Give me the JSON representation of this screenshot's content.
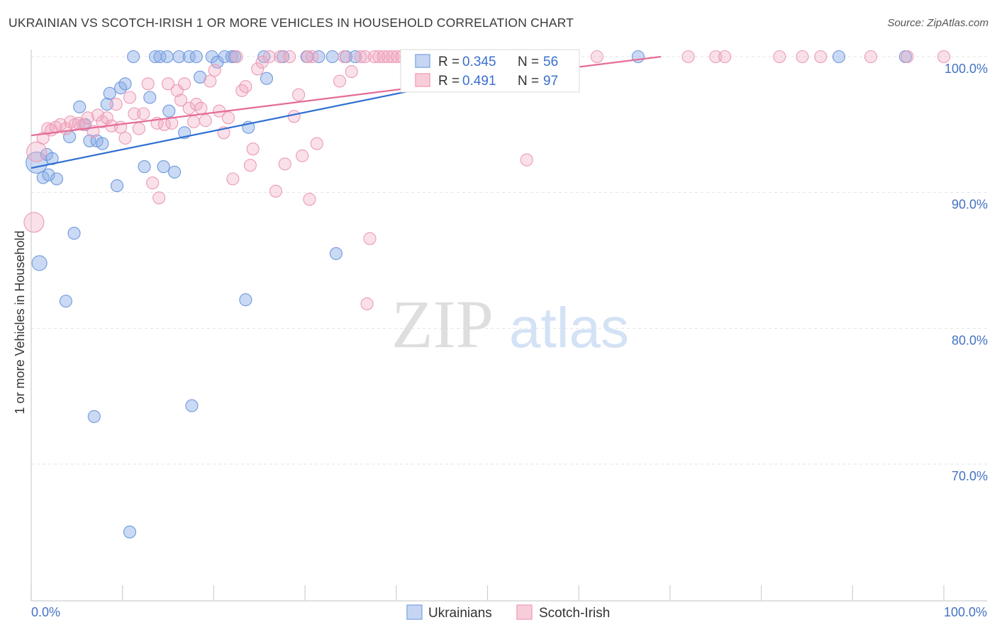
{
  "header": {
    "title": "UKRAINIAN VS SCOTCH-IRISH 1 OR MORE VEHICLES IN HOUSEHOLD CORRELATION CHART",
    "source": "Source: ZipAtlas.com"
  },
  "watermark": {
    "zip": "ZIP",
    "atlas": "atlas"
  },
  "legend": {
    "r_label": "R =",
    "n_label": "N =",
    "series": [
      {
        "name": "Ukrainians",
        "r": "0.345",
        "n": "56"
      },
      {
        "name": "Scotch-Irish",
        "r": "0.491",
        "n": "97"
      }
    ]
  },
  "chart_data": {
    "type": "scatter",
    "title": "UKRAINIAN VS SCOTCH-IRISH 1 OR MORE VEHICLES IN HOUSEHOLD CORRELATION CHART",
    "xlabel": "",
    "ylabel": "1 or more Vehicles in Household",
    "xlim": [
      0,
      100
    ],
    "ylim": [
      60.5,
      101.5
    ],
    "x_tick_labels": [
      "0.0%",
      "100.0%"
    ],
    "y_ticks": [
      {
        "value": 100,
        "label": "100.0%"
      },
      {
        "value": 90,
        "label": "90.0%"
      },
      {
        "value": 80,
        "label": "80.0%"
      },
      {
        "value": 70,
        "label": "70.0%"
      }
    ],
    "colors": {
      "Ukrainians": "#8aaee6",
      "Scotch-Irish": "#f2a7bf",
      "Ukrainians_line": "#2f6fd1",
      "Scotch-Irish_line": "#e56b96"
    },
    "series": [
      {
        "name": "Ukrainians",
        "trend": [
          [
            0,
            91.8
          ],
          [
            60,
            100.0
          ]
        ],
        "points": [
          [
            0.6,
            92.2
          ],
          [
            0.9,
            84.8
          ],
          [
            1.3,
            91.1
          ],
          [
            1.7,
            92.8
          ],
          [
            1.9,
            91.3
          ],
          [
            2.3,
            92.5
          ],
          [
            2.8,
            91.0
          ],
          [
            3.8,
            82.0
          ],
          [
            4.2,
            94.1
          ],
          [
            4.7,
            87.0
          ],
          [
            5.3,
            96.3
          ],
          [
            5.9,
            95.0
          ],
          [
            6.4,
            93.8
          ],
          [
            6.9,
            73.5
          ],
          [
            7.2,
            93.8
          ],
          [
            7.8,
            93.6
          ],
          [
            8.3,
            96.5
          ],
          [
            8.6,
            97.3
          ],
          [
            9.4,
            90.5
          ],
          [
            9.8,
            97.7
          ],
          [
            10.3,
            98.0
          ],
          [
            10.8,
            65.0
          ],
          [
            11.2,
            100.0
          ],
          [
            12.4,
            91.9
          ],
          [
            13.0,
            97.0
          ],
          [
            13.6,
            100.0
          ],
          [
            14.1,
            100.0
          ],
          [
            14.5,
            91.9
          ],
          [
            14.9,
            100.0
          ],
          [
            15.1,
            96.0
          ],
          [
            15.7,
            91.5
          ],
          [
            16.2,
            100.0
          ],
          [
            16.8,
            94.4
          ],
          [
            17.3,
            100.0
          ],
          [
            17.6,
            74.3
          ],
          [
            18.1,
            100.0
          ],
          [
            18.5,
            98.5
          ],
          [
            19.8,
            100.0
          ],
          [
            20.4,
            99.6
          ],
          [
            21.2,
            100.0
          ],
          [
            22.0,
            100.0
          ],
          [
            22.3,
            100.0
          ],
          [
            23.5,
            82.1
          ],
          [
            23.8,
            94.8
          ],
          [
            25.5,
            100.0
          ],
          [
            25.8,
            98.4
          ],
          [
            27.6,
            100.0
          ],
          [
            30.2,
            100.0
          ],
          [
            31.5,
            100.0
          ],
          [
            33.0,
            100.0
          ],
          [
            33.4,
            85.5
          ],
          [
            34.5,
            100.0
          ],
          [
            35.5,
            100.0
          ],
          [
            66.5,
            100.0
          ],
          [
            88.5,
            100.0
          ],
          [
            95.8,
            100.0
          ]
        ]
      },
      {
        "name": "Scotch-Irish",
        "trend": [
          [
            0,
            94.2
          ],
          [
            69,
            100.0
          ]
        ],
        "points": [
          [
            0.3,
            87.8
          ],
          [
            0.6,
            93.0
          ],
          [
            1.3,
            94.0
          ],
          [
            1.8,
            94.7
          ],
          [
            2.2,
            94.6
          ],
          [
            2.7,
            94.8
          ],
          [
            3.2,
            95.0
          ],
          [
            3.8,
            94.7
          ],
          [
            4.3,
            95.2
          ],
          [
            4.8,
            95.0
          ],
          [
            5.2,
            95.1
          ],
          [
            5.7,
            95.0
          ],
          [
            6.2,
            95.5
          ],
          [
            6.8,
            94.5
          ],
          [
            7.3,
            95.7
          ],
          [
            7.8,
            95.2
          ],
          [
            8.3,
            95.5
          ],
          [
            8.8,
            94.9
          ],
          [
            9.3,
            96.5
          ],
          [
            9.8,
            94.8
          ],
          [
            10.3,
            94.0
          ],
          [
            10.8,
            97.0
          ],
          [
            11.3,
            95.8
          ],
          [
            11.8,
            94.7
          ],
          [
            12.3,
            95.8
          ],
          [
            12.8,
            98.0
          ],
          [
            13.3,
            90.7
          ],
          [
            13.8,
            95.1
          ],
          [
            14.0,
            89.6
          ],
          [
            14.6,
            95.0
          ],
          [
            15.0,
            98.0
          ],
          [
            15.4,
            95.1
          ],
          [
            16.0,
            97.5
          ],
          [
            16.4,
            96.8
          ],
          [
            16.8,
            98.0
          ],
          [
            17.3,
            96.2
          ],
          [
            17.8,
            95.2
          ],
          [
            18.1,
            96.5
          ],
          [
            18.6,
            96.2
          ],
          [
            19.1,
            95.3
          ],
          [
            19.6,
            98.2
          ],
          [
            20.1,
            99.0
          ],
          [
            20.6,
            96.0
          ],
          [
            21.1,
            94.4
          ],
          [
            21.6,
            95.5
          ],
          [
            22.1,
            91.0
          ],
          [
            22.5,
            100.0
          ],
          [
            23.1,
            97.5
          ],
          [
            23.5,
            97.8
          ],
          [
            24.0,
            92.0
          ],
          [
            24.3,
            93.2
          ],
          [
            24.8,
            99.1
          ],
          [
            25.3,
            99.6
          ],
          [
            26.1,
            100.0
          ],
          [
            26.8,
            90.1
          ],
          [
            27.3,
            100.0
          ],
          [
            27.8,
            92.1
          ],
          [
            28.3,
            100.0
          ],
          [
            28.8,
            95.6
          ],
          [
            29.3,
            97.2
          ],
          [
            29.7,
            92.7
          ],
          [
            30.3,
            100.0
          ],
          [
            30.8,
            100.0
          ],
          [
            31.3,
            93.6
          ],
          [
            33.8,
            98.2
          ],
          [
            34.3,
            100.0
          ],
          [
            35.1,
            98.9
          ],
          [
            36.1,
            100.0
          ],
          [
            36.6,
            100.0
          ],
          [
            37.1,
            86.6
          ],
          [
            37.6,
            100.0
          ],
          [
            38.1,
            100.0
          ],
          [
            38.6,
            100.0
          ],
          [
            39.1,
            100.0
          ],
          [
            39.6,
            100.0
          ],
          [
            40.1,
            100.0
          ],
          [
            40.6,
            100.0
          ],
          [
            41.1,
            100.0
          ],
          [
            41.6,
            100.0
          ],
          [
            42.1,
            100.0
          ],
          [
            42.6,
            100.0
          ],
          [
            43.6,
            100.0
          ],
          [
            44.3,
            100.0
          ],
          [
            46.0,
            100.0
          ],
          [
            48.0,
            100.0
          ],
          [
            54.3,
            92.4
          ],
          [
            56.0,
            100.0
          ],
          [
            62.0,
            100.0
          ],
          [
            72.0,
            100.0
          ],
          [
            75.0,
            100.0
          ],
          [
            76.0,
            100.0
          ],
          [
            82.0,
            100.0
          ],
          [
            84.5,
            100.0
          ],
          [
            86.5,
            100.0
          ],
          [
            92.0,
            100.0
          ],
          [
            96.0,
            100.0
          ],
          [
            100.0,
            100.0
          ],
          [
            36.8,
            81.8
          ],
          [
            30.5,
            89.5
          ]
        ]
      }
    ]
  }
}
